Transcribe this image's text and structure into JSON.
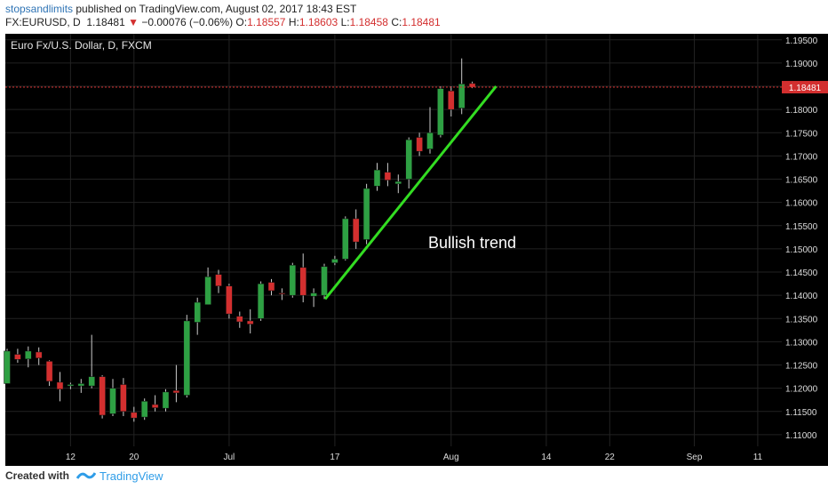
{
  "header": {
    "author": "stopsandlimits",
    "published_text": "published on TradingView.com, August 02, 2017 18:43 EST",
    "symbol_line": "FX:EURUSD, D",
    "last": "1.18481",
    "down_arrow": "▼",
    "change": "−0.00076 (−0.06%)",
    "open_label": "O:",
    "open": "1.18557",
    "high_label": "H:",
    "high": "1.18603",
    "low_label": "L:",
    "low": "1.18458",
    "close_label": "C:",
    "close": "1.18481"
  },
  "footer": {
    "created_with": "Created with",
    "brand": "TradingView"
  },
  "chart_data": {
    "type": "candlestick",
    "title": "Euro Fx/U.S. Dollar, D, FXCM",
    "annotation": "Bullish trend",
    "last_price_label": "1.18481",
    "last_price": 1.18481,
    "y_ticks": [
      "1.19500",
      "1.19000",
      "1.18500",
      "1.18000",
      "1.17500",
      "1.17000",
      "1.16500",
      "1.16000",
      "1.15500",
      "1.15000",
      "1.14500",
      "1.14000",
      "1.13500",
      "1.13000",
      "1.12500",
      "1.12000",
      "1.11500",
      "1.11000"
    ],
    "x_ticks": [
      {
        "label": "12",
        "index": 6
      },
      {
        "label": "20",
        "index": 12
      },
      {
        "label": "Jul",
        "index": 21
      },
      {
        "label": "17",
        "index": 31
      },
      {
        "label": "Aug",
        "index": 42
      },
      {
        "label": "14",
        "index": 51
      },
      {
        "label": "22",
        "index": 57
      },
      {
        "label": "Sep",
        "index": 65
      },
      {
        "label": "11",
        "index": 71
      }
    ],
    "ylim": [
      1.1075,
      1.1963
    ],
    "trendline": {
      "from_index": 30,
      "from_price": 1.1392,
      "to_index": 46,
      "to_price": 1.185
    },
    "colors": {
      "background": "#000000",
      "up": "#2ea043",
      "down": "#d32f2f",
      "trendline": "#33dd22",
      "grid": "#222222",
      "text": "#dddddd"
    },
    "candles": [
      {
        "o": 1.121,
        "h": 1.1285,
        "l": 1.121,
        "c": 1.128
      },
      {
        "o": 1.1273,
        "h": 1.1285,
        "l": 1.1255,
        "c": 1.1262
      },
      {
        "o": 1.1263,
        "h": 1.129,
        "l": 1.1245,
        "c": 1.128
      },
      {
        "o": 1.1278,
        "h": 1.1288,
        "l": 1.125,
        "c": 1.1265
      },
      {
        "o": 1.1258,
        "h": 1.126,
        "l": 1.1205,
        "c": 1.1215
      },
      {
        "o": 1.1213,
        "h": 1.1235,
        "l": 1.1172,
        "c": 1.1198
      },
      {
        "o": 1.1205,
        "h": 1.1212,
        "l": 1.1198,
        "c": 1.1208
      },
      {
        "o": 1.1205,
        "h": 1.122,
        "l": 1.119,
        "c": 1.121
      },
      {
        "o": 1.1205,
        "h": 1.1315,
        "l": 1.12,
        "c": 1.1225
      },
      {
        "o": 1.1225,
        "h": 1.1228,
        "l": 1.1135,
        "c": 1.1142
      },
      {
        "o": 1.1145,
        "h": 1.122,
        "l": 1.114,
        "c": 1.12
      },
      {
        "o": 1.1208,
        "h": 1.1222,
        "l": 1.114,
        "c": 1.115
      },
      {
        "o": 1.1148,
        "h": 1.116,
        "l": 1.1128,
        "c": 1.1136
      },
      {
        "o": 1.1138,
        "h": 1.1178,
        "l": 1.1132,
        "c": 1.1172
      },
      {
        "o": 1.1165,
        "h": 1.1185,
        "l": 1.115,
        "c": 1.1158
      },
      {
        "o": 1.1157,
        "h": 1.1198,
        "l": 1.115,
        "c": 1.1192
      },
      {
        "o": 1.1195,
        "h": 1.125,
        "l": 1.117,
        "c": 1.119
      },
      {
        "o": 1.1185,
        "h": 1.1358,
        "l": 1.118,
        "c": 1.1345
      },
      {
        "o": 1.1342,
        "h": 1.1395,
        "l": 1.1315,
        "c": 1.1385
      },
      {
        "o": 1.138,
        "h": 1.146,
        "l": 1.138,
        "c": 1.144
      },
      {
        "o": 1.1445,
        "h": 1.1455,
        "l": 1.1405,
        "c": 1.142
      },
      {
        "o": 1.142,
        "h": 1.1425,
        "l": 1.135,
        "c": 1.136
      },
      {
        "o": 1.1355,
        "h": 1.1365,
        "l": 1.133,
        "c": 1.1343
      },
      {
        "o": 1.1345,
        "h": 1.137,
        "l": 1.1318,
        "c": 1.1338
      },
      {
        "o": 1.135,
        "h": 1.143,
        "l": 1.1345,
        "c": 1.1425
      },
      {
        "o": 1.1428,
        "h": 1.1435,
        "l": 1.14,
        "c": 1.141
      },
      {
        "o": 1.1405,
        "h": 1.1415,
        "l": 1.139,
        "c": 1.1403
      },
      {
        "o": 1.14,
        "h": 1.147,
        "l": 1.1395,
        "c": 1.1465
      },
      {
        "o": 1.146,
        "h": 1.149,
        "l": 1.1385,
        "c": 1.14
      },
      {
        "o": 1.1398,
        "h": 1.1415,
        "l": 1.1375,
        "c": 1.1405
      },
      {
        "o": 1.14,
        "h": 1.1468,
        "l": 1.1392,
        "c": 1.1462
      },
      {
        "o": 1.147,
        "h": 1.1485,
        "l": 1.1465,
        "c": 1.1478
      },
      {
        "o": 1.1478,
        "h": 1.157,
        "l": 1.1475,
        "c": 1.1565
      },
      {
        "o": 1.1565,
        "h": 1.1585,
        "l": 1.15,
        "c": 1.1515
      },
      {
        "o": 1.152,
        "h": 1.164,
        "l": 1.151,
        "c": 1.163
      },
      {
        "o": 1.1635,
        "h": 1.1685,
        "l": 1.1625,
        "c": 1.167
      },
      {
        "o": 1.1665,
        "h": 1.1685,
        "l": 1.1635,
        "c": 1.1648
      },
      {
        "o": 1.164,
        "h": 1.166,
        "l": 1.162,
        "c": 1.1645
      },
      {
        "o": 1.165,
        "h": 1.174,
        "l": 1.163,
        "c": 1.1735
      },
      {
        "o": 1.174,
        "h": 1.175,
        "l": 1.17,
        "c": 1.171
      },
      {
        "o": 1.1715,
        "h": 1.1805,
        "l": 1.1705,
        "c": 1.175
      },
      {
        "o": 1.1745,
        "h": 1.185,
        "l": 1.174,
        "c": 1.1845
      },
      {
        "o": 1.184,
        "h": 1.185,
        "l": 1.1785,
        "c": 1.18
      },
      {
        "o": 1.1803,
        "h": 1.191,
        "l": 1.179,
        "c": 1.1855
      },
      {
        "o": 1.1856,
        "h": 1.186,
        "l": 1.1846,
        "c": 1.1848
      }
    ]
  }
}
